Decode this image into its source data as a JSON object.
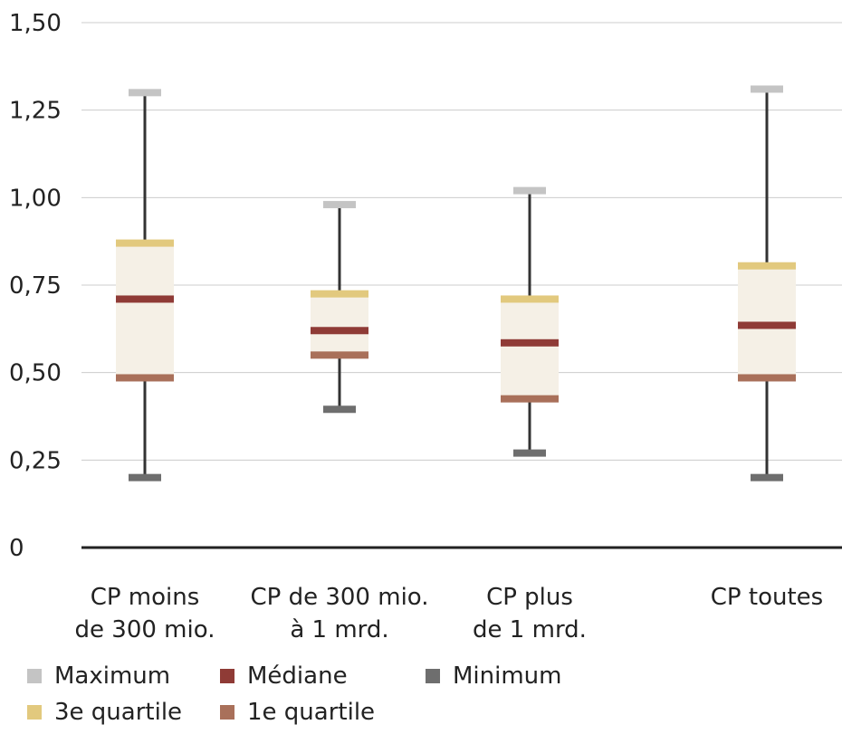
{
  "chart_data": {
    "type": "box",
    "categories": [
      [
        "CP moins",
        "de 300 mio."
      ],
      [
        "CP de 300 mio.",
        "à 1 mrd."
      ],
      [
        "CP plus",
        "de 1 mrd."
      ],
      [
        "CP toutes"
      ]
    ],
    "series": [
      {
        "name": "Maximum",
        "values": [
          1.3,
          0.98,
          1.02,
          1.31
        ]
      },
      {
        "name": "3e quartile",
        "values": [
          0.87,
          0.725,
          0.71,
          0.805
        ]
      },
      {
        "name": "Médiane",
        "values": [
          0.71,
          0.62,
          0.585,
          0.635
        ]
      },
      {
        "name": "1e quartile",
        "values": [
          0.485,
          0.55,
          0.425,
          0.485
        ]
      },
      {
        "name": "Minimum",
        "values": [
          0.2,
          0.395,
          0.27,
          0.2
        ]
      }
    ],
    "ylim": [
      0,
      1.5
    ],
    "yticks": [
      "0",
      "0,25",
      "0,50",
      "0,75",
      "1,00",
      "1,25",
      "1,50"
    ],
    "grid": true,
    "legend_position": "bottom",
    "colors": {
      "Maximum": "#c4c4c4",
      "3e quartile": "#e2c97e",
      "Médiane": "#8f3b36",
      "1e quartile": "#a9705a",
      "Minimum": "#6e6e6e",
      "box_fill": "#f5f0e6",
      "whisker": "#333333",
      "grid": "#cccccc",
      "axis": "#222222"
    }
  },
  "legend": {
    "items": [
      {
        "label": "Maximum",
        "color": "#c4c4c4"
      },
      {
        "label": "Médiane",
        "color": "#8f3b36"
      },
      {
        "label": "Minimum",
        "color": "#6e6e6e"
      },
      {
        "label": "3e quartile",
        "color": "#e2c97e"
      },
      {
        "label": "1e quartile",
        "color": "#a9705a"
      }
    ]
  }
}
